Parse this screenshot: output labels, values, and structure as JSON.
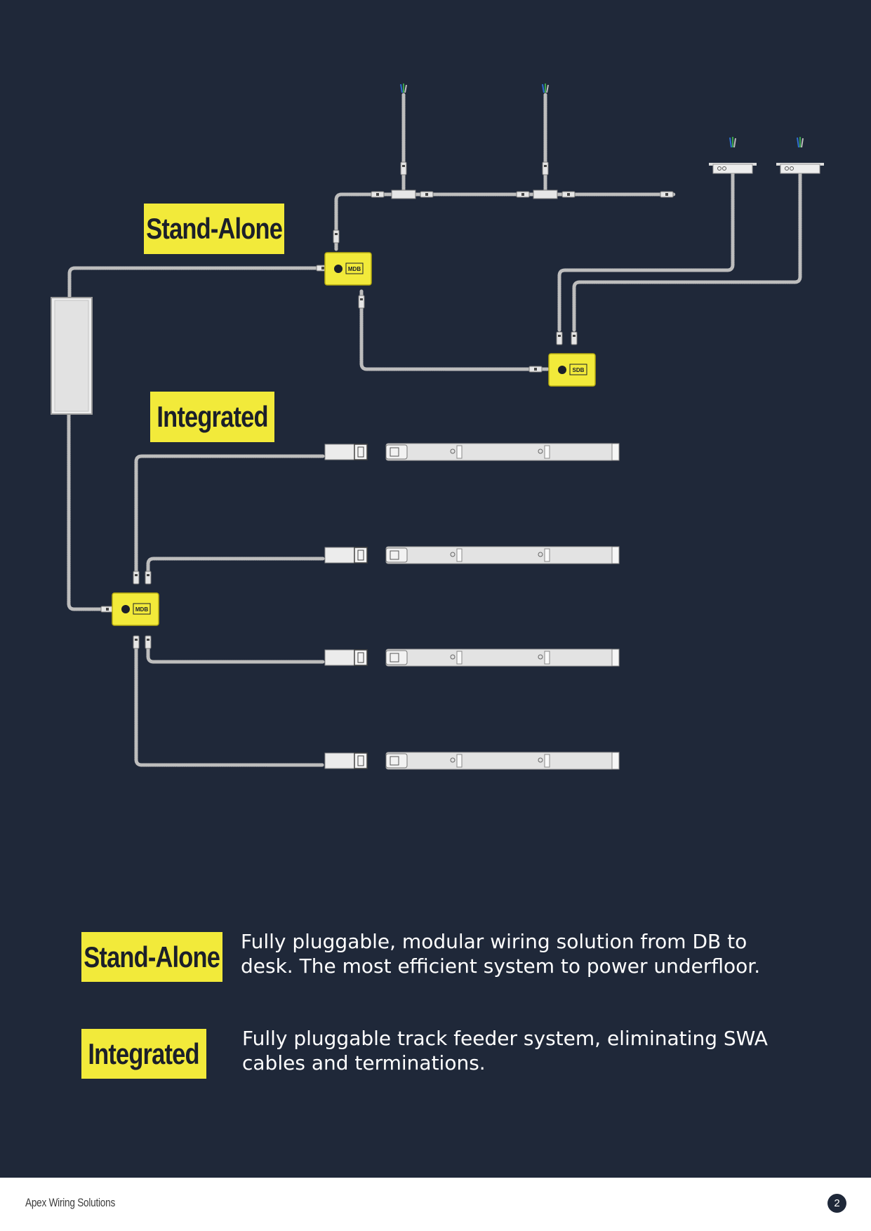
{
  "diagram": {
    "tags": {
      "standalone": "Stand-Alone",
      "integrated": "Integrated"
    },
    "box_labels": {
      "mdb_top": "MDB",
      "sdb": "SDB",
      "mdb_bottom": "MDB"
    }
  },
  "legend": [
    {
      "tag": "Stand-Alone",
      "text": "Fully pluggable, modular wiring solution from DB to desk. The most efficient system to power underfloor."
    },
    {
      "tag": "Integrated",
      "text": "Fully pluggable track feeder system, eliminating SWA cables and terminations."
    }
  ],
  "footer": {
    "brand": "Apex Wiring Solutions",
    "page_number": "2"
  },
  "colors": {
    "background": "#1f2839",
    "accent_yellow": "#f2ea3a",
    "cable_grey": "#b8b8b8",
    "footer_bg": "#ffffff"
  }
}
